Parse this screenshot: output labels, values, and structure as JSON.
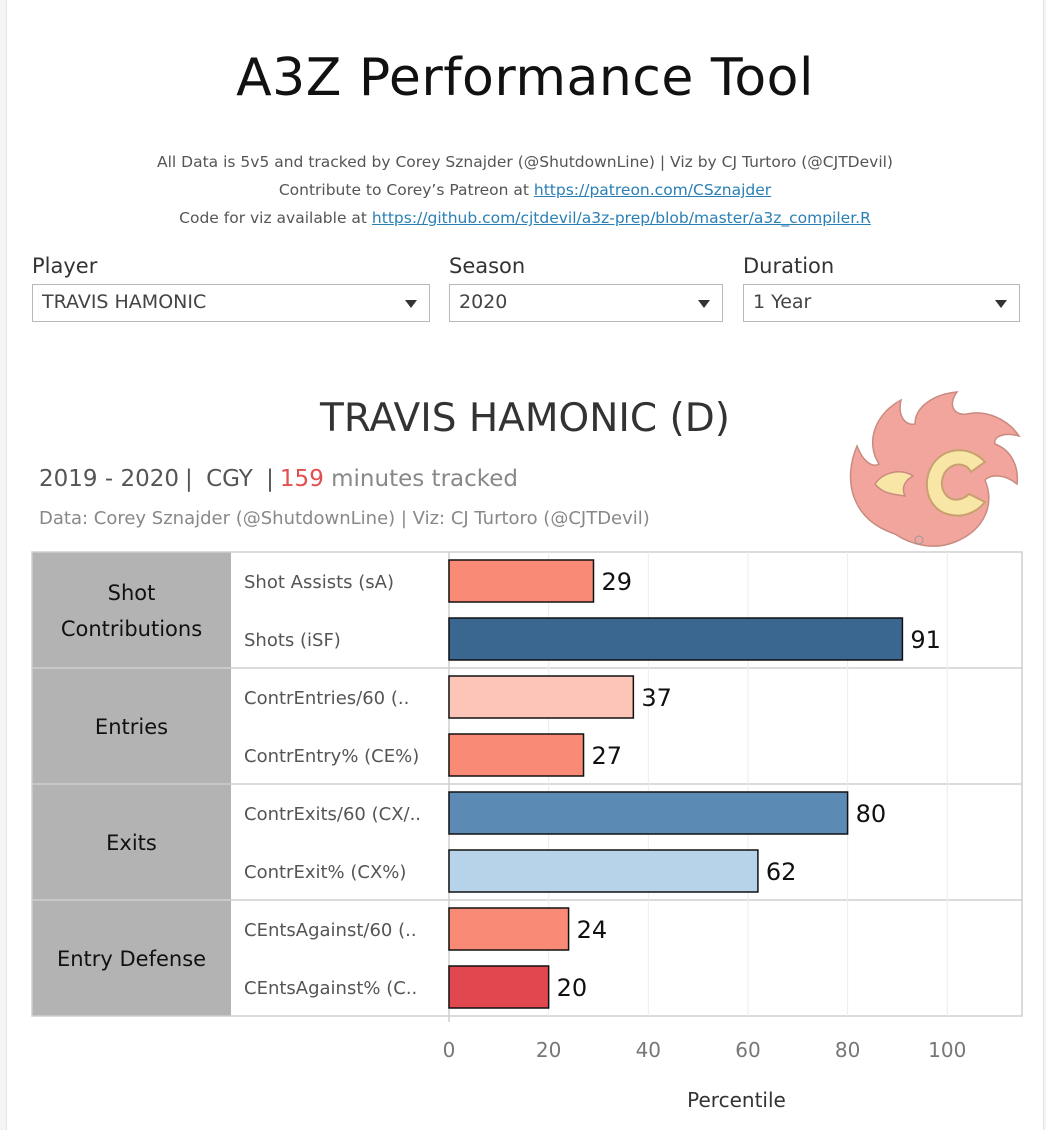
{
  "header": {
    "title": "A3Z Performance Tool",
    "credit_line": "All Data is 5v5 and tracked by Corey Sznajder (@ShutdownLine) | Viz by CJ Turtoro (@CJTDevil)",
    "patreon_prefix": "Contribute to Corey’s Patreon at ",
    "patreon_link": "https://patreon.com/CSznajder",
    "code_prefix": "Code for viz available at ",
    "code_link": "https://github.com/cjtdevil/a3z-prep/blob/master/a3z_compiler.R"
  },
  "filters": {
    "player": {
      "label": "Player",
      "value": "TRAVIS HAMONIC"
    },
    "season": {
      "label": "Season",
      "value": "2020"
    },
    "duration": {
      "label": "Duration",
      "value": "1 Year"
    }
  },
  "player_card": {
    "heading": "TRAVIS HAMONIC (D)",
    "seasons": "2019 - 2020",
    "sep": "|",
    "team": "CGY",
    "minutes": "159",
    "minutes_suffix": "minutes tracked",
    "data_credit": "Data: Corey Sznajder (@ShutdownLine) | Viz: CJ Turtoro (@CJTDevil)",
    "logo_icon": "calgary-flames-logo",
    "logo_colors": {
      "red": "#f2a59c",
      "yellow": "#f7e6a6",
      "outline": "#b86b60"
    }
  },
  "chart_data": {
    "type": "bar",
    "orientation": "horizontal",
    "xlabel": "Percentile",
    "xlim": [
      0,
      115
    ],
    "xticks": [
      0,
      20,
      40,
      60,
      80,
      100
    ],
    "grid": true,
    "groups": [
      {
        "name": "Shot\nContributions",
        "metrics": [
          {
            "label": "Shot Assists (sA)",
            "value": 29,
            "color": "#f98b76"
          },
          {
            "label": "Shots (iSF)",
            "value": 91,
            "color": "#3a6790"
          }
        ]
      },
      {
        "name": "Entries",
        "metrics": [
          {
            "label": "ContrEntries/60 (..",
            "value": 37,
            "color": "#fdc4b8"
          },
          {
            "label": "ContrEntry% (CE%)",
            "value": 27,
            "color": "#f98b76"
          }
        ]
      },
      {
        "name": "Exits",
        "metrics": [
          {
            "label": "ContrExits/60 (CX/..",
            "value": 80,
            "color": "#5b8ab5"
          },
          {
            "label": "ContrExit% (CX%)",
            "value": 62,
            "color": "#b7d3ea"
          }
        ]
      },
      {
        "name": "Entry Defense",
        "metrics": [
          {
            "label": "CEntsAgainst/60 (..",
            "value": 24,
            "color": "#f98b76"
          },
          {
            "label": "CEntsAgainst% (C..",
            "value": 20,
            "color": "#e0474f"
          }
        ]
      }
    ]
  }
}
